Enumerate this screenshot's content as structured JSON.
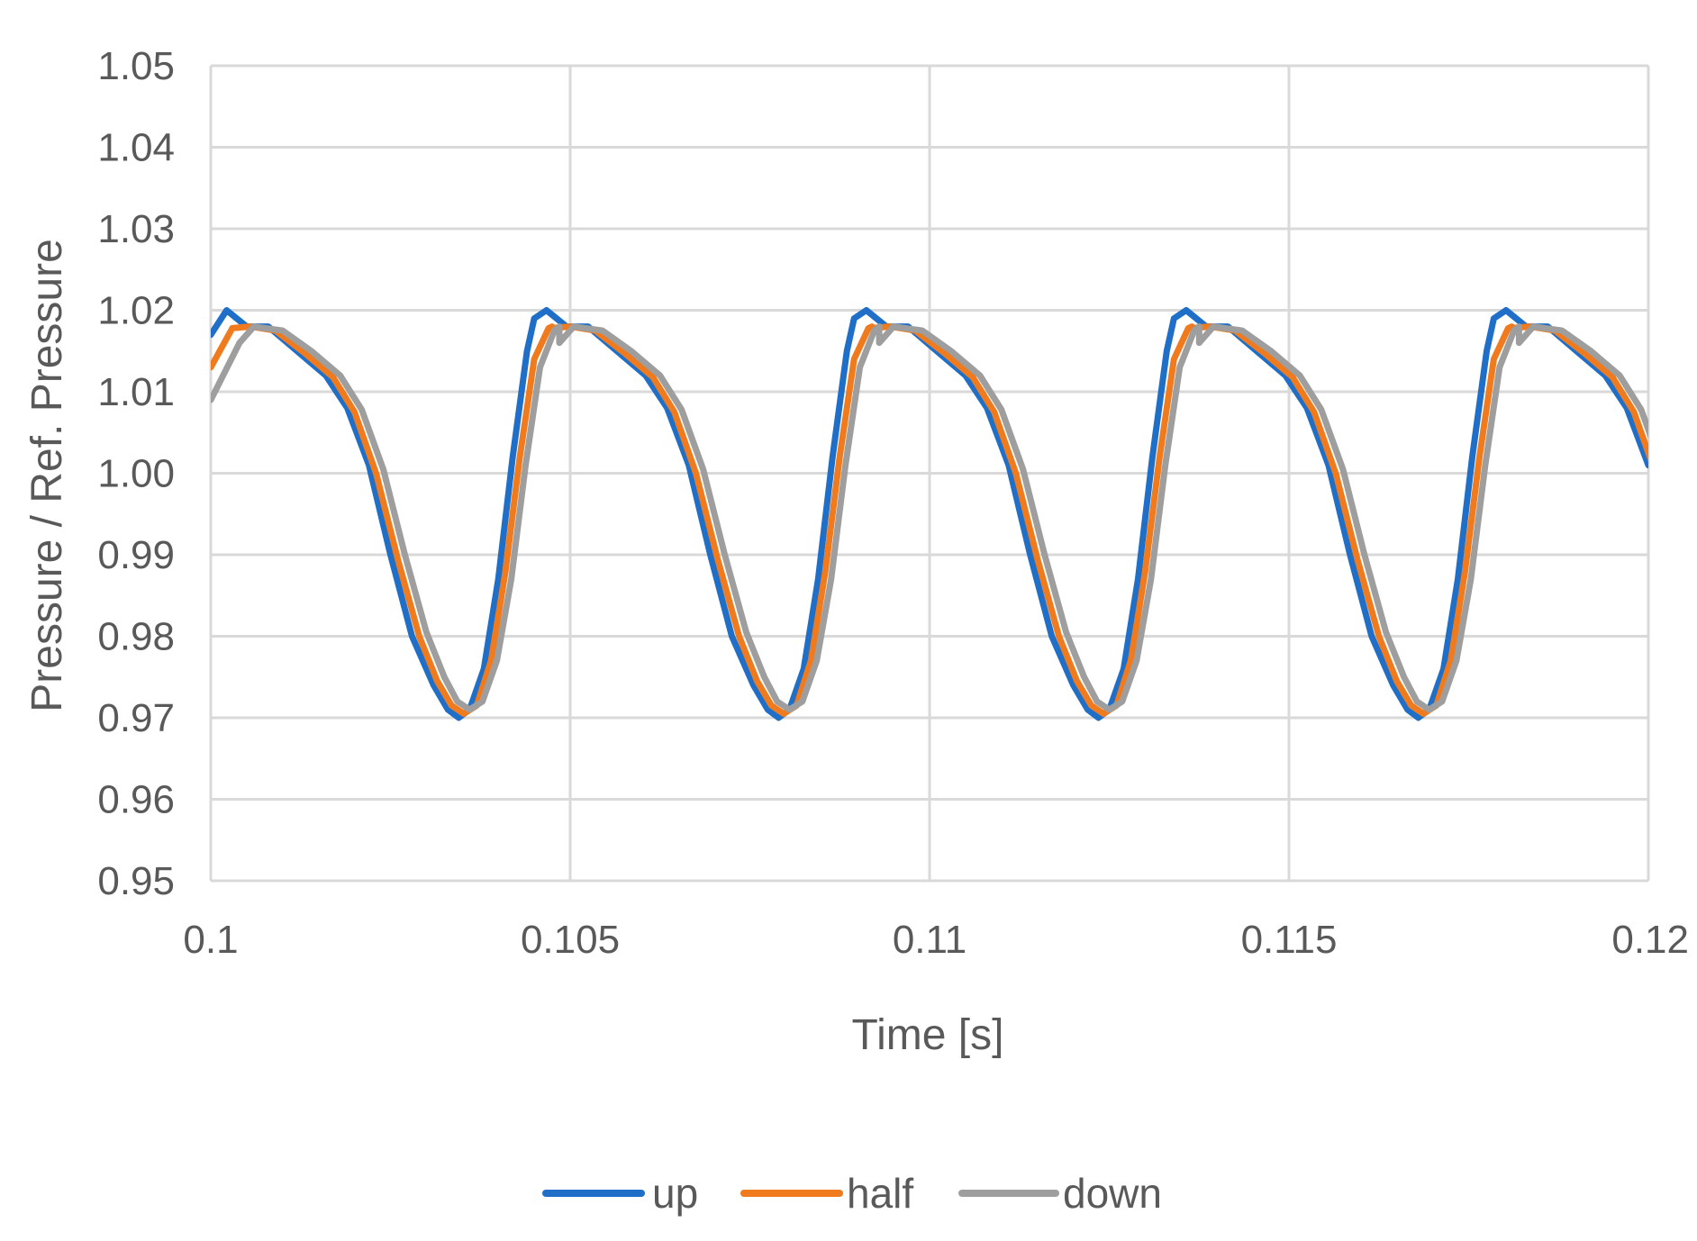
{
  "chart_data": {
    "type": "line",
    "title": "",
    "xlabel": "Time [s]",
    "ylabel": "Pressure / Ref. Pressure",
    "xlim": [
      0.1,
      0.12
    ],
    "ylim": [
      0.95,
      1.05
    ],
    "x_ticks": [
      "0.1",
      "0.105",
      "0.11",
      "0.115",
      "0.12"
    ],
    "y_ticks": [
      "1.05",
      "1.04",
      "1.03",
      "1.02",
      "1.01",
      "1.00",
      "0.99",
      "0.98",
      "0.97",
      "0.96",
      "0.95"
    ],
    "grid": true,
    "legend_position": "bottom",
    "period": 0.00445,
    "series": [
      {
        "name": "up",
        "color": "#1f6fc8",
        "x": [
          0.1,
          0.10022,
          0.1005,
          0.1008,
          0.1012,
          0.1016,
          0.1019,
          0.1022,
          0.1025,
          0.1028,
          0.1031,
          0.1033,
          0.10345,
          0.1036,
          0.1038,
          0.104,
          0.1042,
          0.1044,
          0.1045,
          0.10467
        ],
        "values": [
          1.017,
          1.02,
          1.018,
          1.018,
          1.015,
          1.012,
          1.008,
          1.001,
          0.99,
          0.98,
          0.974,
          0.971,
          0.97,
          0.971,
          0.976,
          0.987,
          1.002,
          1.015,
          1.019,
          1.02
        ]
      },
      {
        "name": "half",
        "color": "#f07b1e",
        "x": [
          0.1,
          0.1003,
          0.10055,
          0.1009,
          0.1013,
          0.1017,
          0.102,
          0.1023,
          0.1026,
          0.1029,
          0.10315,
          0.10335,
          0.10352,
          0.1037,
          0.1039,
          0.1041,
          0.1043,
          0.1045,
          0.1047,
          0.10475
        ],
        "values": [
          1.013,
          1.0178,
          1.018,
          1.0175,
          1.0148,
          1.0118,
          1.0075,
          1.0,
          0.9895,
          0.98,
          0.9745,
          0.9715,
          0.9705,
          0.9715,
          0.977,
          0.988,
          1.002,
          1.014,
          1.0178,
          1.018
        ]
      },
      {
        "name": "down",
        "color": "#9e9e9e",
        "x": [
          0.1,
          0.1004,
          0.1006,
          0.101,
          0.1014,
          0.1018,
          0.1021,
          0.1024,
          0.1027,
          0.103,
          0.10325,
          0.10343,
          0.1036,
          0.10378,
          0.10398,
          0.10418,
          0.10438,
          0.10458,
          0.10478,
          0.10485
        ],
        "values": [
          1.009,
          1.016,
          1.018,
          1.0175,
          1.015,
          1.012,
          1.0078,
          1.0005,
          0.99,
          0.9805,
          0.975,
          0.972,
          0.971,
          0.972,
          0.977,
          0.987,
          1.001,
          1.013,
          1.0175,
          1.018
        ]
      }
    ]
  }
}
